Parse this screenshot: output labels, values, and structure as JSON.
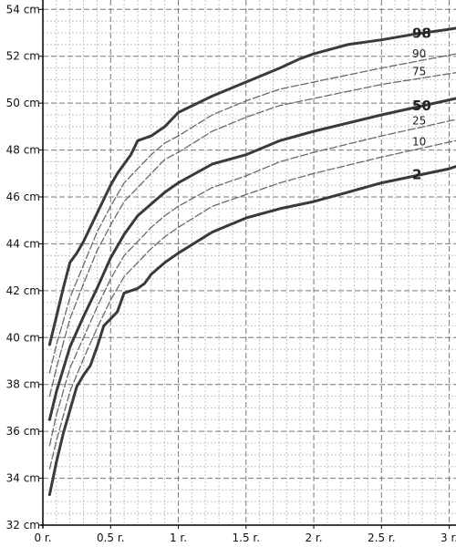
{
  "chart_data": {
    "type": "line",
    "title": "",
    "xlabel": "",
    "ylabel": "",
    "xlim": [
      0,
      3.05
    ],
    "ylim": [
      32,
      54.4
    ],
    "grid": true,
    "x_ticks": [
      {
        "value": 0,
        "label": "0 r."
      },
      {
        "value": 0.5,
        "label": "0.5 r."
      },
      {
        "value": 1,
        "label": "1 r."
      },
      {
        "value": 1.5,
        "label": "1.5 r."
      },
      {
        "value": 2,
        "label": "2 r."
      },
      {
        "value": 2.5,
        "label": "2.5 r."
      },
      {
        "value": 3,
        "label": "3 r."
      }
    ],
    "y_ticks": [
      {
        "value": 32,
        "label": "32 cm"
      },
      {
        "value": 34,
        "label": "34 cm"
      },
      {
        "value": 36,
        "label": "36 cm"
      },
      {
        "value": 38,
        "label": "38 cm"
      },
      {
        "value": 40,
        "label": "40 cm"
      },
      {
        "value": 42,
        "label": "42 cm"
      },
      {
        "value": 44,
        "label": "44 cm"
      },
      {
        "value": 46,
        "label": "46 cm"
      },
      {
        "value": 48,
        "label": "48 cm"
      },
      {
        "value": 50,
        "label": "50 cm"
      },
      {
        "value": 52,
        "label": "52 cm"
      },
      {
        "value": 54,
        "label": "54 cm"
      }
    ],
    "series": [
      {
        "name": "98",
        "major": true,
        "label": "98",
        "x": [
          0.05,
          0.1,
          0.15,
          0.2,
          0.25,
          0.3,
          0.35,
          0.4,
          0.45,
          0.5,
          0.55,
          0.6,
          0.65,
          0.7,
          0.75,
          0.8,
          0.9,
          1,
          1.25,
          1.5,
          1.75,
          1.9,
          2,
          2.25,
          2.5,
          2.75,
          3,
          3.05
        ],
        "y": [
          39.7,
          40.9,
          42.1,
          43.2,
          43.6,
          44.1,
          44.7,
          45.3,
          45.9,
          46.5,
          47.0,
          47.4,
          47.8,
          48.4,
          48.5,
          48.6,
          49.0,
          49.6,
          50.3,
          50.9,
          51.5,
          51.9,
          52.1,
          52.5,
          52.7,
          52.95,
          53.15,
          53.2
        ]
      },
      {
        "name": "90",
        "major": false,
        "label": "90",
        "x": [
          0.05,
          0.1,
          0.2,
          0.3,
          0.4,
          0.5,
          0.6,
          0.7,
          0.8,
          0.9,
          1,
          1.25,
          1.5,
          1.75,
          2,
          2.5,
          3.05
        ],
        "y": [
          38.5,
          39.7,
          41.7,
          43.1,
          44.5,
          45.6,
          46.6,
          47.2,
          47.8,
          48.3,
          48.6,
          49.5,
          50.1,
          50.6,
          50.9,
          51.5,
          52.1
        ]
      },
      {
        "name": "75",
        "major": false,
        "label": "75",
        "x": [
          0.05,
          0.1,
          0.2,
          0.3,
          0.4,
          0.5,
          0.6,
          0.7,
          0.8,
          0.9,
          1,
          1.25,
          1.5,
          1.75,
          2,
          2.5,
          3.05
        ],
        "y": [
          37.5,
          38.7,
          40.8,
          42.3,
          43.7,
          44.8,
          45.8,
          46.4,
          47.0,
          47.6,
          47.9,
          48.8,
          49.4,
          49.9,
          50.2,
          50.8,
          51.3
        ]
      },
      {
        "name": "50",
        "major": true,
        "label": "50",
        "x": [
          0.05,
          0.1,
          0.2,
          0.3,
          0.4,
          0.5,
          0.6,
          0.7,
          0.8,
          0.9,
          1,
          1.25,
          1.5,
          1.75,
          2,
          2.5,
          3.05
        ],
        "y": [
          36.5,
          37.7,
          39.6,
          40.9,
          42.1,
          43.4,
          44.4,
          45.2,
          45.7,
          46.2,
          46.6,
          47.4,
          47.8,
          48.4,
          48.8,
          49.5,
          50.2
        ]
      },
      {
        "name": "25",
        "major": false,
        "label": "25",
        "x": [
          0.05,
          0.1,
          0.2,
          0.3,
          0.4,
          0.5,
          0.6,
          0.7,
          0.8,
          0.9,
          1,
          1.25,
          1.5,
          1.75,
          2,
          2.5,
          3.05
        ],
        "y": [
          35.4,
          36.7,
          38.7,
          40.0,
          41.3,
          42.5,
          43.5,
          44.1,
          44.7,
          45.2,
          45.6,
          46.4,
          46.9,
          47.5,
          47.9,
          48.6,
          49.3
        ]
      },
      {
        "name": "10",
        "major": false,
        "label": "10",
        "x": [
          0.05,
          0.1,
          0.2,
          0.3,
          0.4,
          0.5,
          0.6,
          0.7,
          0.8,
          0.9,
          1,
          1.25,
          1.5,
          1.75,
          2,
          2.5,
          3.05
        ],
        "y": [
          34.4,
          35.6,
          37.7,
          39.1,
          40.4,
          41.6,
          42.6,
          43.2,
          43.8,
          44.3,
          44.7,
          45.6,
          46.1,
          46.6,
          47.0,
          47.7,
          48.4
        ]
      },
      {
        "name": "2",
        "major": true,
        "label": "2",
        "x": [
          0.05,
          0.1,
          0.15,
          0.2,
          0.25,
          0.3,
          0.35,
          0.4,
          0.45,
          0.5,
          0.55,
          0.6,
          0.65,
          0.7,
          0.75,
          0.8,
          0.9,
          1,
          1.25,
          1.5,
          1.75,
          2,
          2.25,
          2.5,
          2.75,
          3,
          3.05
        ],
        "y": [
          33.3,
          34.7,
          35.9,
          36.9,
          37.9,
          38.4,
          38.8,
          39.6,
          40.5,
          40.8,
          41.1,
          41.9,
          42.0,
          42.1,
          42.3,
          42.7,
          43.2,
          43.6,
          44.5,
          45.1,
          45.5,
          45.8,
          46.2,
          46.6,
          46.9,
          47.2,
          47.3
        ]
      }
    ]
  }
}
